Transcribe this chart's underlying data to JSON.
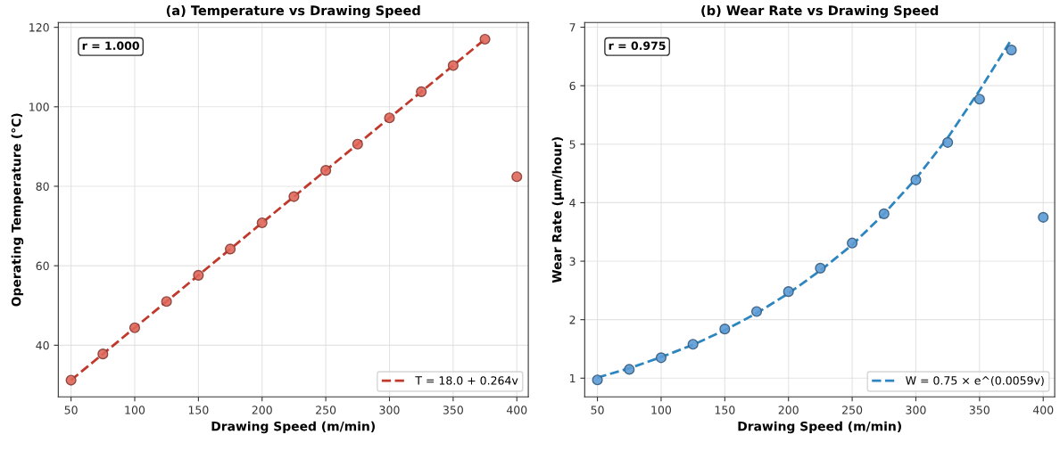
{
  "chart_data": [
    {
      "type": "scatter",
      "title": "(a) Temperature vs Drawing Speed",
      "xlabel": "Drawing Speed (m/min)",
      "ylabel": "Operating Temperature (°C)",
      "xlim": [
        40,
        409
      ],
      "xticks": [
        50,
        100,
        150,
        200,
        250,
        300,
        350,
        400
      ],
      "ylim": [
        27,
        121.2
      ],
      "yticks": [
        40,
        60,
        80,
        100,
        120
      ],
      "grid": true,
      "legend": "lower right",
      "annotations": [
        "r = 1.000"
      ],
      "series": [
        {
          "marker": "circle",
          "color": "#e0675a",
          "x": [
            50,
            75,
            100,
            125,
            150,
            175,
            200,
            225,
            250,
            275,
            300,
            325,
            350,
            375,
            400
          ],
          "values": [
            31.2,
            37.8,
            44.4,
            51.0,
            57.6,
            64.2,
            70.8,
            77.4,
            84.0,
            90.6,
            97.2,
            103.8,
            110.4,
            117.0,
            82.4
          ]
        },
        {
          "type": "line",
          "name": "T = 18.0 + 0.264v",
          "color": "#c0392b",
          "line_style": "dashed",
          "x": [
            50,
            375
          ],
          "values": [
            31.2,
            117.0
          ]
        }
      ]
    },
    {
      "type": "scatter",
      "title": "(b) Wear Rate vs Drawing Speed",
      "xlabel": "Drawing Speed (m/min)",
      "ylabel": "Wear Rate (μm/hour)",
      "xlim": [
        40,
        409
      ],
      "xticks": [
        50,
        100,
        150,
        200,
        250,
        300,
        350,
        400
      ],
      "ylim": [
        0.68,
        7.08
      ],
      "yticks": [
        1,
        2,
        3,
        4,
        5,
        6,
        7
      ],
      "grid": true,
      "legend": "lower right",
      "annotations": [
        "r = 0.975"
      ],
      "series": [
        {
          "marker": "circle",
          "color": "#5b9bd5",
          "x": [
            50,
            75,
            100,
            125,
            150,
            175,
            200,
            225,
            250,
            275,
            300,
            325,
            350,
            375,
            400
          ],
          "values": [
            0.97,
            1.15,
            1.35,
            1.58,
            1.84,
            2.14,
            2.48,
            2.88,
            3.31,
            3.81,
            4.39,
            5.03,
            5.77,
            6.61,
            3.75
          ]
        },
        {
          "type": "line",
          "name": "W = 0.75 × e^(0.0059v)",
          "color": "#2e86c1",
          "line_style": "dashed",
          "x": [
            50,
            75,
            100,
            125,
            150,
            175,
            200,
            225,
            250,
            275,
            300,
            325,
            350,
            375
          ],
          "values": [
            1.01,
            1.17,
            1.36,
            1.57,
            1.82,
            2.11,
            2.45,
            2.84,
            3.28,
            3.81,
            4.41,
            5.11,
            5.92,
            6.79
          ]
        }
      ]
    }
  ]
}
